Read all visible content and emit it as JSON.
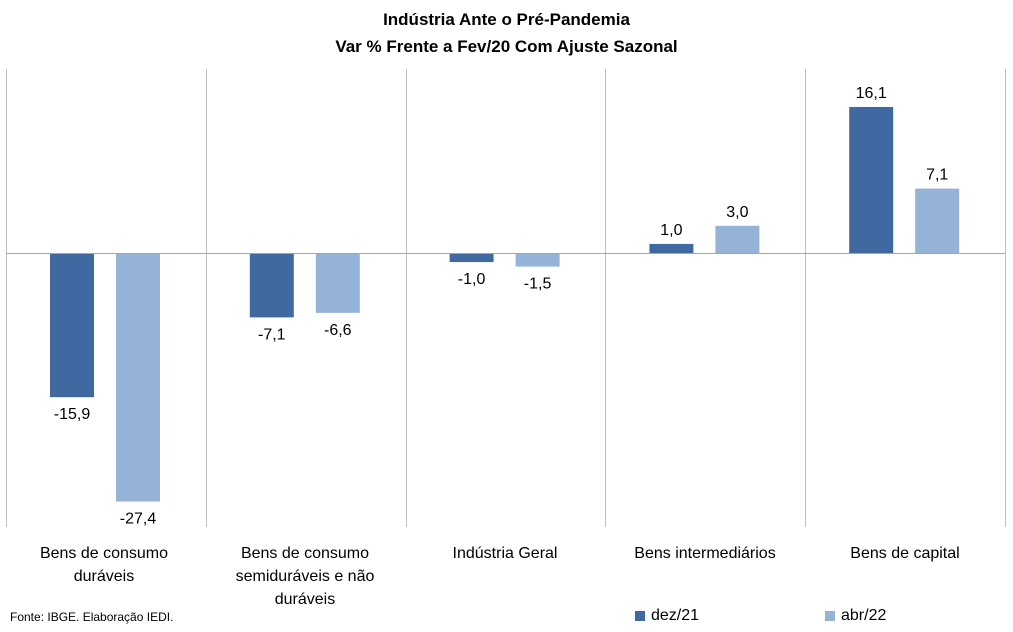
{
  "chart_data": {
    "type": "bar",
    "title": "Indústria  Ante o Pré-Pandemia",
    "subtitle": "Var % Frente a Fev/20 Com Ajuste Sazonal",
    "categories": [
      "Bens de consumo duráveis",
      "Bens de consumo semiduráveis e não duráveis",
      "Indústria Geral",
      "Bens intermediários",
      "Bens de capital"
    ],
    "series": [
      {
        "name": "dez/21",
        "color": "#4169A1",
        "values": [
          -15.9,
          -7.1,
          -1.0,
          1.0,
          16.1
        ],
        "labels": [
          "-15,9",
          "-7,1",
          "-1,0",
          "1,0",
          "16,1"
        ]
      },
      {
        "name": "abr/22",
        "color": "#95B3D7",
        "values": [
          -27.4,
          -6.6,
          -1.5,
          3.0,
          7.1
        ],
        "labels": [
          "-27,4",
          "-6,6",
          "-1,5",
          "3,0",
          "7,1"
        ]
      }
    ],
    "ylim": [
      -30,
      20
    ],
    "legend_position": "bottom-right",
    "grid": "vertical category separators"
  },
  "source": "Fonte: IBGE. Elaboração IEDI."
}
